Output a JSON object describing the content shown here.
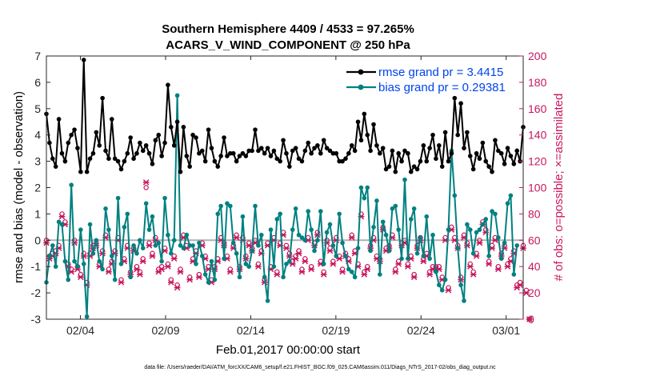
{
  "chart_data": {
    "type": "line",
    "title": "Southern Hemisphere 4409 / 4533 = 97.265%",
    "subtitle": "ACARS_V_WIND_COMPONENT @ 250 hPa",
    "xlabel": "Feb.01,2017 00:00:00 start",
    "ylabel_left": "rmse and bias (model - observation)",
    "ylabel_right": "# of obs: o=possible; ×=assimilated",
    "footer": "data file: /Users/raeder/DAI/ATM_forcXX/CAM6_setup/f.e21.FHIST_BGC.f09_025.CAM6assim.011/Diags_NTrS_2017-02/obs_diag_output.nc",
    "xlim": [
      1,
      29
    ],
    "ylim_left": [
      -3,
      7
    ],
    "ylim_right": [
      0,
      200
    ],
    "x_ticks": [
      3,
      8,
      13,
      18,
      23,
      28
    ],
    "x_tick_labels": [
      "02/04",
      "02/09",
      "02/14",
      "02/19",
      "02/24",
      "03/01"
    ],
    "y_left_ticks": [
      -3,
      -2,
      -1,
      0,
      1,
      2,
      3,
      4,
      5,
      6,
      7
    ],
    "y_right_ticks": [
      0,
      20,
      40,
      60,
      80,
      100,
      120,
      140,
      160,
      180,
      200
    ],
    "legend": [
      "rmse grand pr = 3.4415",
      "bias grand pr = 0.29381"
    ],
    "legend_position": "top-right",
    "colors": {
      "rmse": "#000000",
      "bias": "#008080",
      "obs": "#c8175d",
      "zero": "#b0b0b0",
      "legend_text": "#0044ee"
    },
    "series": [
      {
        "name": "rmse",
        "values": [
          4.8,
          3.7,
          3.1,
          2.8,
          4.6,
          3.3,
          3.0,
          3.7,
          4.0,
          4.2,
          3.5,
          2.6,
          6.85,
          2.6,
          3.1,
          3.3,
          4.1,
          3.6,
          5.4,
          3.4,
          3.1,
          4.6,
          3.1,
          3.0,
          2.7,
          3.0,
          3.3,
          3.9,
          3.1,
          3.3,
          3.7,
          3.4,
          3.6,
          3.3,
          2.9,
          3.8,
          4.0,
          3.2,
          3.7,
          5.9,
          4.3,
          3.6,
          4.5,
          2.6,
          4.3,
          3.2,
          2.8,
          4.0,
          3.9,
          3.3,
          3.4,
          3.0,
          4.2,
          3.5,
          3.0,
          2.8,
          3.2,
          3.9,
          3.2,
          3.3,
          3.3,
          3.0,
          3.2,
          3.3,
          3.2,
          3.4,
          3.4,
          4.2,
          3.4,
          3.5,
          3.3,
          3.5,
          3.2,
          3.4,
          3.1,
          3.0,
          3.8,
          3.3,
          2.8,
          3.4,
          3.5,
          3.1,
          3.0,
          3.4,
          3.7,
          3.3,
          3.5,
          3.6,
          3.3,
          3.8,
          3.5,
          3.4,
          3.3,
          3.3,
          3.0,
          3.0,
          3.1,
          3.3,
          3.6,
          3.4,
          4.5,
          3.8,
          4.8,
          4.0,
          3.4,
          4.4,
          3.6,
          3.3,
          3.5,
          2.7,
          2.8,
          3.4,
          2.6,
          3.3,
          3.0,
          3.4,
          3.3,
          2.6,
          2.8,
          2.7,
          3.0,
          3.6,
          3.0,
          3.5,
          4.0,
          3.1,
          3.6,
          2.8,
          4.1,
          3.0,
          3.3,
          5.4,
          4.0,
          5.2,
          3.5,
          4.1,
          3.2,
          2.7,
          3.3,
          3.1,
          3.7,
          3.0,
          2.8,
          2.6,
          3.8,
          3.4,
          3.3,
          2.9,
          3.5,
          3.2,
          2.9,
          3.4,
          3.0,
          4.3
        ],
        "bias": null
      },
      {
        "name": "bias",
        "values": [
          -1.6,
          -0.6,
          -0.2,
          -1.0,
          0.7,
          0.6,
          -0.8,
          -1.5,
          2.1,
          -0.8,
          -1.0,
          0.4,
          -0.9,
          -2.9,
          0.6,
          -0.5,
          0.0,
          -0.8,
          -1.1,
          1.2,
          0.4,
          -0.6,
          -1.5,
          1.6,
          -0.9,
          0.5,
          1.0,
          -1.4,
          -0.2,
          -0.5,
          0.0,
          -0.3,
          1.4,
          0.4,
          0.9,
          -0.2,
          -0.1,
          -0.8,
          1.6,
          0.2,
          -0.5,
          0.0,
          5.5,
          -0.2,
          -0.3,
          0.2,
          -0.2,
          -0.2,
          -0.9,
          -0.1,
          -0.6,
          -1.3,
          -1.6,
          -0.8,
          -1.5,
          1.0,
          1.3,
          -0.7,
          1.4,
          1.3,
          -0.1,
          -0.5,
          -1.4,
          0.9,
          -0.9,
          -1.0,
          -0.4,
          1.3,
          -0.2,
          0.2,
          -1.4,
          -2.3,
          0.4,
          -1.0,
          0.8,
          1.0,
          -1.4,
          -0.9,
          -0.8,
          0.4,
          1.2,
          0.2,
          0.1,
          0.0,
          1.1,
          0.4,
          -0.4,
          0.0,
          1.1,
          -0.9,
          0.3,
          0.6,
          -0.2,
          -0.6,
          1.0,
          -0.1,
          -0.6,
          -1.1,
          -1.2,
          -1.4,
          -0.3,
          2.0,
          1.6,
          2.0,
          -0.4,
          0.5,
          1.5,
          -1.3,
          0.7,
          0.2,
          -0.4,
          1.2,
          1.3,
          0.4,
          -0.7,
          2.3,
          -0.7,
          0.8,
          1.2,
          -0.5,
          0.1,
          -0.6,
          0.9,
          -0.7,
          0.2,
          -1.2,
          -1.7,
          -1.9,
          -1.5,
          0.4,
          3.4,
          1.7,
          -0.3,
          -1.7,
          -2.3,
          0.6,
          0.4,
          -0.5,
          0.3,
          0.4,
          0.6,
          0.8,
          -0.6,
          1.1,
          1.0,
          0.1,
          -0.7,
          -0.1,
          1.4,
          1.7,
          -1.3,
          -0.2
        ]
      }
    ],
    "obs_possible": [
      60,
      48,
      50,
      52,
      56,
      80,
      74,
      42,
      38,
      60,
      40,
      34,
      50,
      28,
      50,
      56,
      58,
      42,
      52,
      64,
      38,
      44,
      52,
      62,
      30,
      46,
      56,
      36,
      54,
      40,
      36,
      46,
      100,
      58,
      50,
      62,
      38,
      40,
      54,
      42,
      30,
      48,
      26,
      38,
      64,
      56,
      32,
      46,
      52,
      34,
      58,
      48,
      40,
      30,
      40,
      46,
      62,
      58,
      48,
      38,
      56,
      64,
      40,
      62,
      48,
      58,
      54,
      60,
      42,
      52,
      30,
      58,
      40,
      62,
      36,
      58,
      66,
      56,
      50,
      44,
      48,
      52,
      38,
      46,
      62,
      40,
      58,
      66,
      44,
      36,
      60,
      54,
      44,
      62,
      48,
      38,
      50,
      46,
      64,
      52,
      42,
      80,
      36,
      40,
      56,
      62,
      48,
      46,
      70,
      54,
      56,
      64,
      38,
      44,
      58,
      60,
      42,
      48,
      34,
      56,
      62,
      46,
      50,
      36,
      40,
      40,
      40,
      32,
      62,
      24,
      70,
      62,
      56,
      32,
      64,
      58,
      42,
      36,
      50,
      60,
      74,
      68,
      44,
      56,
      62,
      40,
      50,
      56,
      42,
      46,
      52,
      26,
      28,
      56,
      22,
      0
    ],
    "obs_assimilated": [
      58,
      46,
      48,
      50,
      54,
      78,
      72,
      40,
      36,
      58,
      38,
      32,
      48,
      26,
      48,
      54,
      56,
      40,
      50,
      62,
      36,
      42,
      50,
      60,
      28,
      44,
      54,
      34,
      52,
      38,
      34,
      44,
      104,
      56,
      48,
      60,
      36,
      38,
      52,
      40,
      28,
      46,
      24,
      36,
      62,
      54,
      30,
      44,
      50,
      32,
      56,
      46,
      38,
      28,
      38,
      44,
      60,
      56,
      46,
      36,
      54,
      62,
      38,
      60,
      46,
      56,
      52,
      58,
      40,
      50,
      28,
      56,
      38,
      60,
      34,
      56,
      64,
      54,
      48,
      42,
      46,
      50,
      36,
      44,
      60,
      38,
      56,
      64,
      42,
      34,
      58,
      52,
      42,
      60,
      46,
      36,
      48,
      44,
      62,
      50,
      40,
      78,
      34,
      38,
      54,
      60,
      46,
      44,
      68,
      52,
      54,
      62,
      36,
      42,
      56,
      58,
      40,
      46,
      32,
      54,
      60,
      44,
      48,
      34,
      38,
      38,
      38,
      30,
      60,
      22,
      68,
      60,
      54,
      30,
      62,
      56,
      40,
      34,
      48,
      58,
      72,
      66,
      42,
      54,
      60,
      38,
      48,
      54,
      40,
      44,
      50,
      24,
      26,
      54,
      20,
      0
    ]
  }
}
